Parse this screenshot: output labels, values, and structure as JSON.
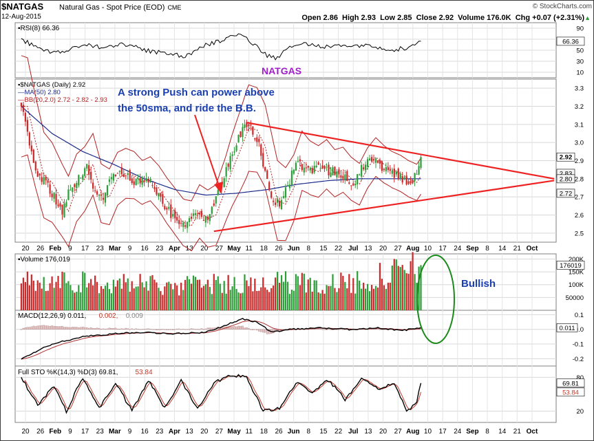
{
  "header": {
    "symbol": "$NATGAS",
    "name": "Natural Gas - Spot Price (EOD)",
    "exchange": "CME",
    "date": "12-Aug-2015",
    "ohlc_line": "Open 2.86  High 2.93  Low 2.85  Close 2.92  Volume 176.0K  Chg +0.07 (+2.31%)",
    "up_arrow": "▲",
    "credit": "© StockCharts.com"
  },
  "watermark": "NATGAS",
  "annotations": {
    "push_line1": "A strong Push can power above",
    "push_line2": "the 50sma, and ride the B.B.",
    "bullish": "Bullish"
  },
  "colors": {
    "up": "#2e9e3a",
    "down": "#cc2a2a",
    "ma": "#1a2a8a",
    "bb": "#b22222",
    "trend": "#ee2222",
    "note": "#1a3fb0",
    "watermark": "#a020c8",
    "circle": "#1a8a1a",
    "panel_border": "#7f7f7f",
    "grid": "#d8d8d8",
    "frame": "#3b3b3b"
  },
  "chart_data": {
    "type": "candlestick",
    "price_panel": {
      "legend": [
        "▪$NATGAS (Daily) 2.92",
        "—MA(50) 2.80",
        "—BB(20,2.0) 2.72 - 2.82 - 2.93"
      ],
      "y_ticks": [
        "3.3",
        "3.2",
        "3.1",
        "3.0",
        "2.9",
        "2.8",
        "2.7",
        "2.6",
        "2.5"
      ],
      "ylim": [
        2.45,
        3.35
      ],
      "price_labels": [
        {
          "text": "2.92",
          "value": 2.92,
          "highlight": true
        },
        {
          "text": "2.83",
          "value": 2.83,
          "highlight": false
        },
        {
          "text": "2.80",
          "value": 2.8,
          "highlight": false
        },
        {
          "text": "2.72",
          "value": 2.72,
          "highlight": false
        }
      ]
    },
    "rsi_panel": {
      "legend": "▪RSI(8) 66.36",
      "y_ticks": [
        "90",
        "70",
        "50",
        "30",
        "10"
      ],
      "ylim": [
        0,
        100
      ],
      "last": 66.36,
      "last_label": "66.36"
    },
    "volume_panel": {
      "legend": "▪Volume 176,019",
      "y_ticks": [
        "200K",
        "150K",
        "100K",
        "50000"
      ],
      "ylim": [
        0,
        220000
      ],
      "last": 176019,
      "last_label": "176019"
    },
    "macd_panel": {
      "legend_parts": [
        {
          "text": "MACD(12,26,9) 0.011, ",
          "color": "#000000"
        },
        {
          "text": "0.002, ",
          "color": "#c0392b"
        },
        {
          "text": "0.009",
          "color": "#888888"
        }
      ],
      "y_ticks": [
        "0.1",
        "0.0",
        "-0.1",
        "-0.2"
      ],
      "ylim": [
        -0.25,
        0.13
      ],
      "last_label": "0.011"
    },
    "sto_panel": {
      "legend_parts": [
        {
          "text": "Full STO %K(14,3) %D(3) 69.81, ",
          "color": "#000000"
        },
        {
          "text": "53.84",
          "color": "#c0392b"
        }
      ],
      "y_ticks": [
        "80",
        "20"
      ],
      "ylim": [
        0,
        100
      ],
      "k_label": "69.81",
      "d_label": "53.84"
    },
    "x_ticks": [
      "20",
      "26",
      "Feb",
      "9",
      "17",
      "23",
      "Mar",
      "9",
      "16",
      "23",
      "Apr",
      "13",
      "20",
      "27",
      "May",
      "11",
      "18",
      "26",
      "Jun",
      "8",
      "15",
      "22",
      "Jul",
      "13",
      "20",
      "27",
      "Aug",
      "10",
      "17",
      "24",
      "Sep",
      "8",
      "14",
      "21",
      "Oct"
    ],
    "x_tick_bold": [
      "Feb",
      "Mar",
      "Apr",
      "May",
      "Jun",
      "Jul",
      "Aug",
      "Sep",
      "Oct"
    ],
    "close_anchors": [
      [
        0,
        3.2
      ],
      [
        4,
        3.0
      ],
      [
        8,
        2.82
      ],
      [
        12,
        2.78
      ],
      [
        16,
        2.7
      ],
      [
        20,
        2.62
      ],
      [
        24,
        2.75
      ],
      [
        28,
        2.8
      ],
      [
        32,
        2.88
      ],
      [
        36,
        2.72
      ],
      [
        40,
        2.7
      ],
      [
        44,
        2.8
      ],
      [
        48,
        2.83
      ],
      [
        52,
        2.82
      ],
      [
        56,
        2.78
      ],
      [
        60,
        2.8
      ],
      [
        64,
        2.75
      ],
      [
        68,
        2.68
      ],
      [
        72,
        2.62
      ],
      [
        76,
        2.56
      ],
      [
        80,
        2.54
      ],
      [
        84,
        2.62
      ],
      [
        88,
        2.58
      ],
      [
        92,
        2.6
      ],
      [
        96,
        2.72
      ],
      [
        100,
        2.85
      ],
      [
        104,
        2.96
      ],
      [
        108,
        3.08
      ],
      [
        112,
        3.07
      ],
      [
        116,
        2.98
      ],
      [
        118,
        2.88
      ],
      [
        122,
        2.68
      ],
      [
        126,
        2.66
      ],
      [
        130,
        2.75
      ],
      [
        134,
        2.9
      ],
      [
        138,
        2.86
      ],
      [
        142,
        2.84
      ],
      [
        146,
        2.88
      ],
      [
        150,
        2.83
      ],
      [
        154,
        2.85
      ],
      [
        158,
        2.8
      ],
      [
        162,
        2.77
      ],
      [
        166,
        2.86
      ],
      [
        170,
        2.92
      ],
      [
        174,
        2.88
      ],
      [
        178,
        2.85
      ],
      [
        182,
        2.83
      ],
      [
        186,
        2.8
      ],
      [
        190,
        2.78
      ],
      [
        194,
        2.85
      ],
      [
        195,
        2.92
      ]
    ],
    "sma50_anchors": [
      [
        0,
        3.2
      ],
      [
        15,
        3.05
      ],
      [
        30,
        2.95
      ],
      [
        45,
        2.88
      ],
      [
        60,
        2.8
      ],
      [
        75,
        2.74
      ],
      [
        90,
        2.71
      ],
      [
        105,
        2.72
      ],
      [
        120,
        2.74
      ],
      [
        135,
        2.77
      ],
      [
        150,
        2.79
      ],
      [
        165,
        2.8
      ],
      [
        180,
        2.8
      ],
      [
        195,
        2.8
      ]
    ],
    "bb_width_anchors": [
      [
        0,
        0.28
      ],
      [
        20,
        0.2
      ],
      [
        40,
        0.16
      ],
      [
        60,
        0.12
      ],
      [
        80,
        0.13
      ],
      [
        100,
        0.18
      ],
      [
        110,
        0.24
      ],
      [
        125,
        0.22
      ],
      [
        140,
        0.15
      ],
      [
        160,
        0.12
      ],
      [
        180,
        0.1
      ],
      [
        195,
        0.1
      ]
    ],
    "rsi_anchors": [
      [
        0,
        70
      ],
      [
        10,
        50
      ],
      [
        20,
        45
      ],
      [
        30,
        60
      ],
      [
        40,
        55
      ],
      [
        50,
        62
      ],
      [
        60,
        50
      ],
      [
        70,
        45
      ],
      [
        80,
        38
      ],
      [
        90,
        60
      ],
      [
        100,
        70
      ],
      [
        105,
        80
      ],
      [
        110,
        72
      ],
      [
        120,
        40
      ],
      [
        125,
        35
      ],
      [
        130,
        55
      ],
      [
        140,
        62
      ],
      [
        150,
        55
      ],
      [
        160,
        58
      ],
      [
        170,
        60
      ],
      [
        180,
        50
      ],
      [
        190,
        55
      ],
      [
        195,
        66
      ]
    ],
    "macd_anchors": [
      [
        0,
        -0.2
      ],
      [
        15,
        -0.1
      ],
      [
        30,
        -0.05
      ],
      [
        45,
        -0.03
      ],
      [
        60,
        -0.02
      ],
      [
        75,
        -0.03
      ],
      [
        90,
        -0.02
      ],
      [
        100,
        0.03
      ],
      [
        108,
        0.07
      ],
      [
        115,
        0.05
      ],
      [
        122,
        -0.02
      ],
      [
        130,
        0.0
      ],
      [
        145,
        0.01
      ],
      [
        160,
        0.0
      ],
      [
        175,
        0.01
      ],
      [
        185,
        -0.01
      ],
      [
        195,
        0.011
      ]
    ],
    "sto_anchors": [
      [
        0,
        80
      ],
      [
        8,
        30
      ],
      [
        16,
        65
      ],
      [
        22,
        20
      ],
      [
        30,
        80
      ],
      [
        38,
        25
      ],
      [
        46,
        70
      ],
      [
        54,
        20
      ],
      [
        62,
        75
      ],
      [
        70,
        25
      ],
      [
        78,
        75
      ],
      [
        86,
        25
      ],
      [
        94,
        70
      ],
      [
        102,
        85
      ],
      [
        110,
        80
      ],
      [
        118,
        20
      ],
      [
        126,
        25
      ],
      [
        134,
        70
      ],
      [
        142,
        55
      ],
      [
        150,
        75
      ],
      [
        158,
        40
      ],
      [
        166,
        80
      ],
      [
        174,
        60
      ],
      [
        182,
        70
      ],
      [
        188,
        20
      ],
      [
        193,
        35
      ],
      [
        195,
        70
      ]
    ],
    "volume_anchors": [
      [
        0,
        120000
      ],
      [
        40,
        110000
      ],
      [
        80,
        100000
      ],
      [
        120,
        115000
      ],
      [
        160,
        110000
      ],
      [
        195,
        176019
      ]
    ],
    "trendlines": [
      {
        "name": "upper",
        "from": [
          110,
          3.11
        ],
        "to": [
          260,
          2.8
        ]
      },
      {
        "name": "lower",
        "from": [
          94,
          2.51
        ],
        "to": [
          260,
          2.79
        ]
      }
    ],
    "n_days": 196,
    "x_domain": [
      -3,
      261
    ]
  }
}
